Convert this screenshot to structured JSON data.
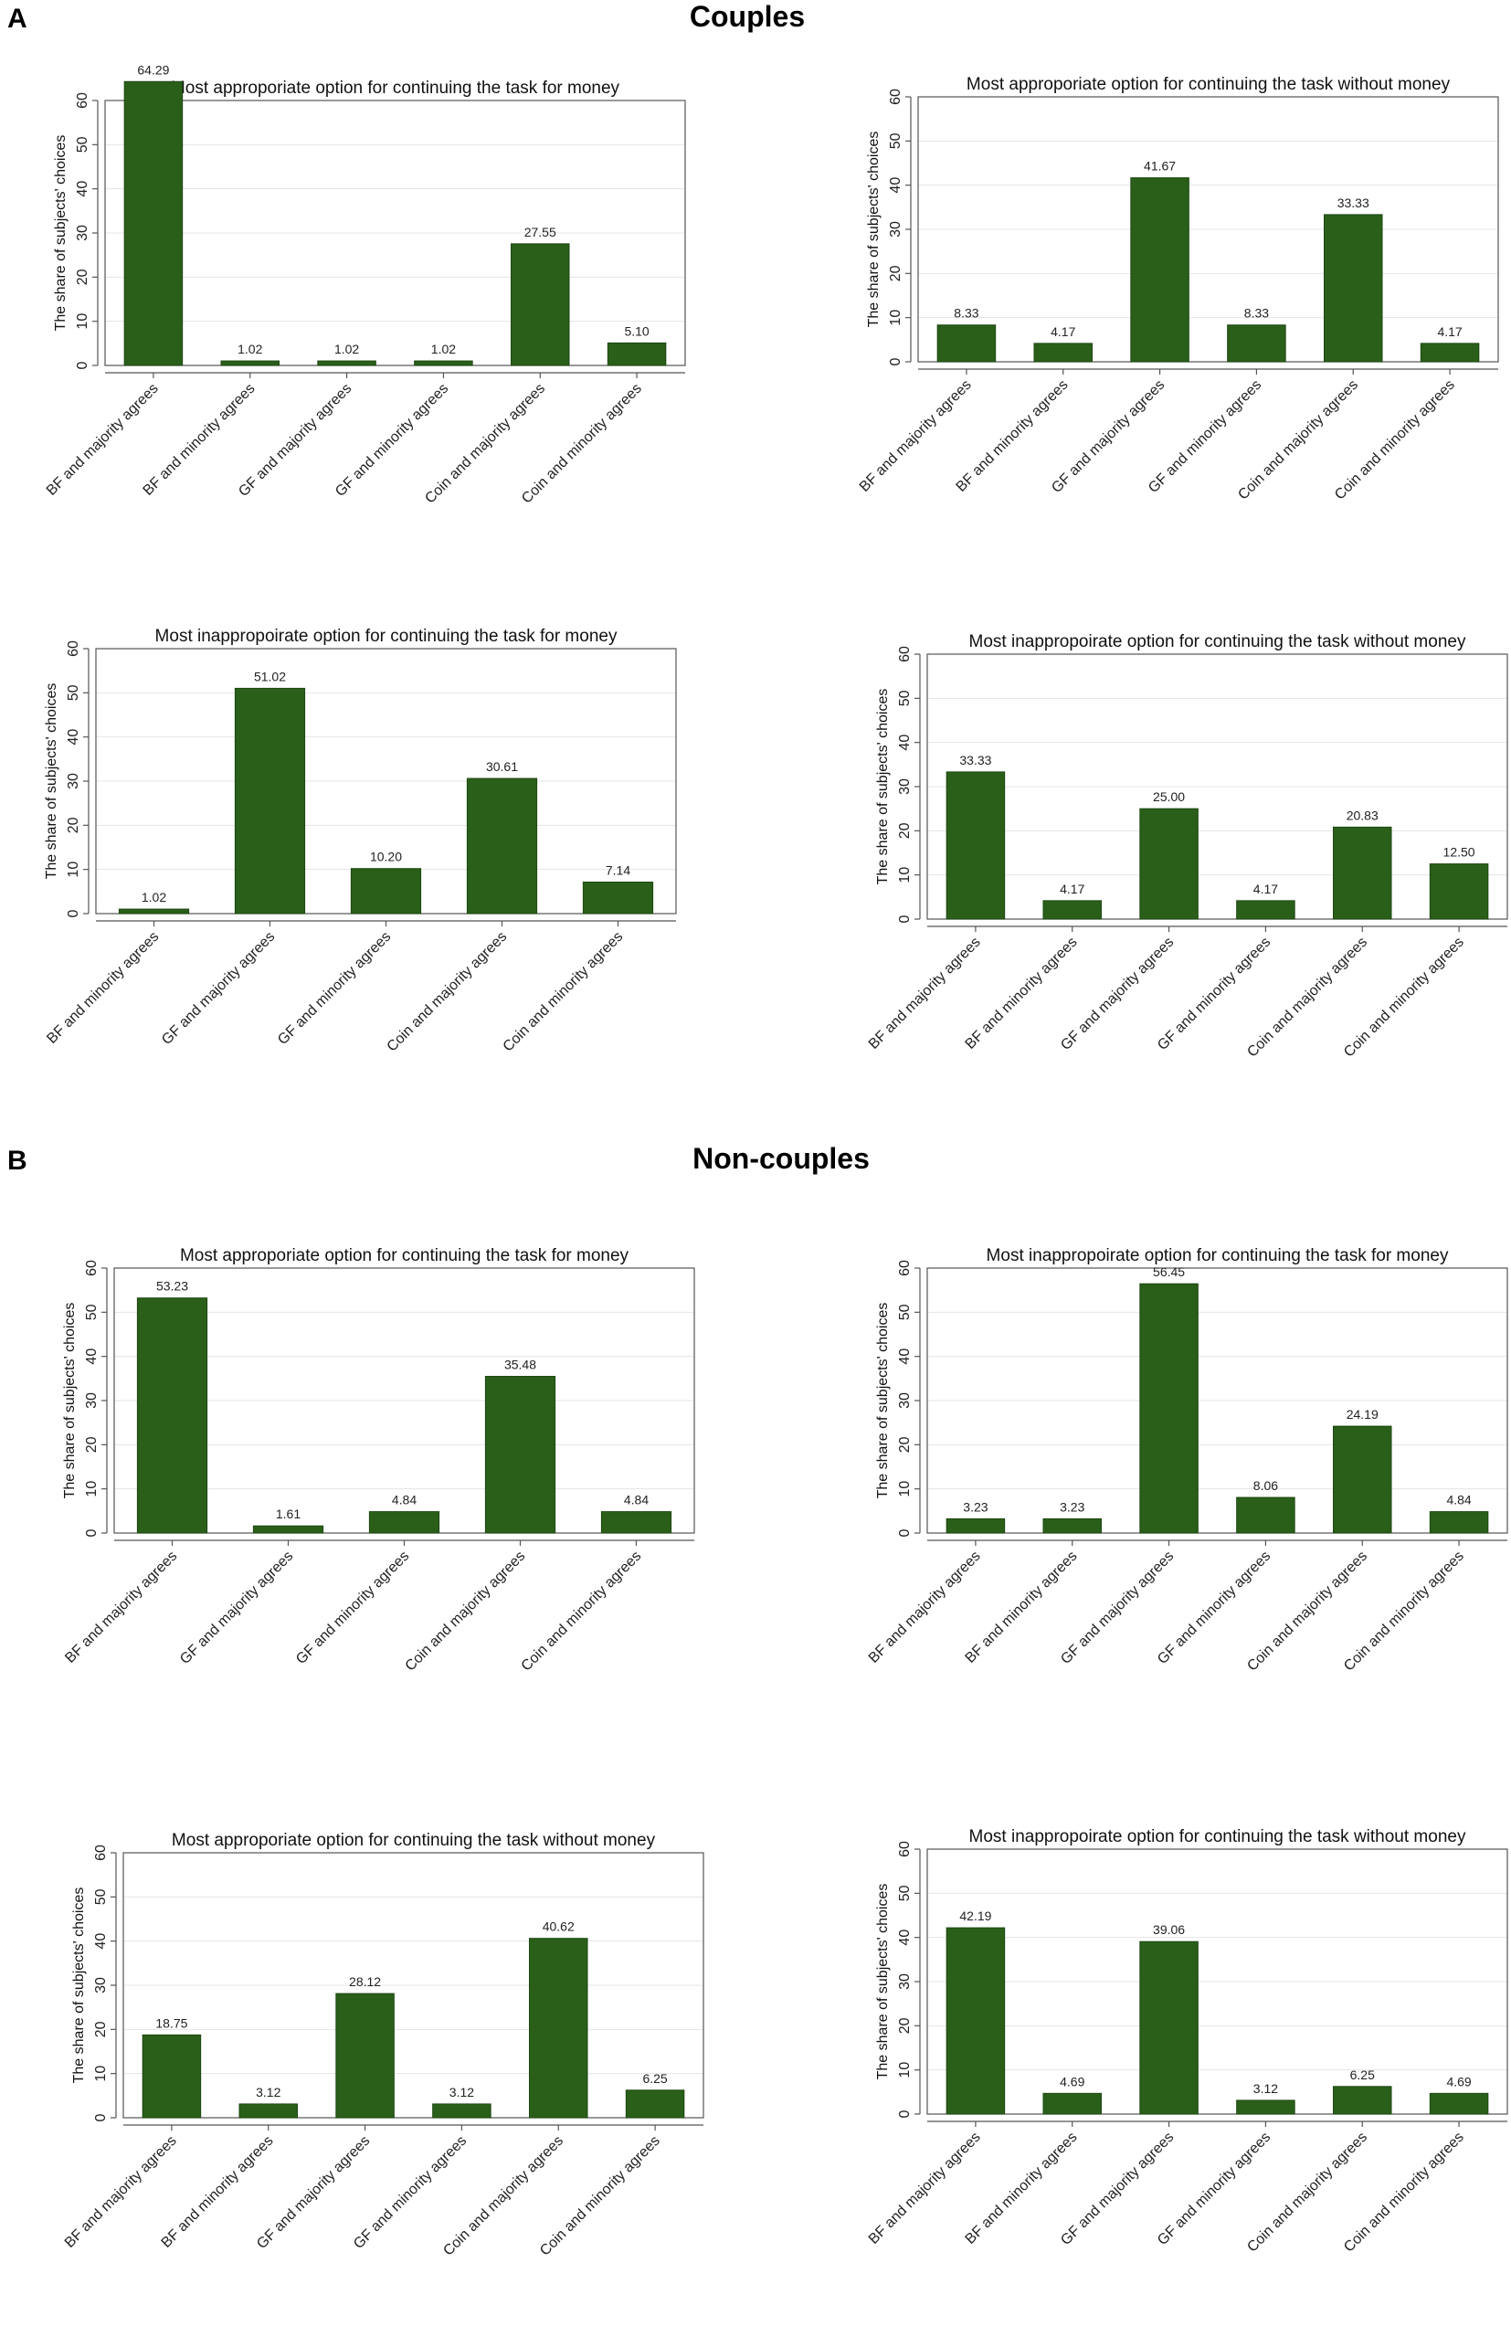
{
  "sections": {
    "A": {
      "letter": "A",
      "title": "Couples"
    },
    "B": {
      "letter": "B",
      "title": "Non-couples"
    }
  },
  "colors": {
    "bar": "#2a5f1a",
    "bar_edge": "#1d4712",
    "grid": "#e4e4e4",
    "axis": "#555555"
  },
  "chart_data": [
    {
      "type": "bar",
      "title": "Most approporiate option for continuing the task for money",
      "ylabel": "The share of subjects' choices",
      "xlabel": "",
      "ylim": [
        0,
        60
      ],
      "yticks": [
        0,
        10,
        20,
        30,
        40,
        50,
        60
      ],
      "categories": [
        "BF and majority agrees",
        "BF and minority agrees",
        "GF and majority agrees",
        "GF and minority agrees",
        "Coin and majority agrees",
        "Coin and minority agrees"
      ],
      "values": [
        64.29,
        1.02,
        1.02,
        1.02,
        27.55,
        5.1
      ],
      "value_labels": [
        "64.29",
        "1.02",
        "1.02",
        "1.02",
        "27.55",
        "5.10"
      ]
    },
    {
      "type": "bar",
      "title": "Most approporiate option for continuing the task without money",
      "ylabel": "The share of subjects' choices",
      "xlabel": "",
      "ylim": [
        0,
        60
      ],
      "yticks": [
        0,
        10,
        20,
        30,
        40,
        50,
        60
      ],
      "categories": [
        "BF and majority agrees",
        "BF and minority agrees",
        "GF and majority agrees",
        "GF and minority agrees",
        "Coin and majority agrees",
        "Coin and minority agrees"
      ],
      "values": [
        8.33,
        4.17,
        41.67,
        8.33,
        33.33,
        4.17
      ],
      "value_labels": [
        "8.33",
        "4.17",
        "41.67",
        "8.33",
        "33.33",
        "4.17"
      ]
    },
    {
      "type": "bar",
      "title": "Most inappropoirate option for continuing the task for money",
      "ylabel": "The share of subjects' choices",
      "xlabel": "",
      "ylim": [
        0,
        60
      ],
      "yticks": [
        0,
        10,
        20,
        30,
        40,
        50,
        60
      ],
      "categories": [
        "BF and minority agrees",
        "GF and majority agrees",
        "GF and minority agrees",
        "Coin and majority agrees",
        "Coin and minority agrees"
      ],
      "values": [
        1.02,
        51.02,
        10.2,
        30.61,
        7.14
      ],
      "value_labels": [
        "1.02",
        "51.02",
        "10.20",
        "30.61",
        "7.14"
      ]
    },
    {
      "type": "bar",
      "title": "Most inappropoirate option for continuing the task without money",
      "ylabel": "The share of subjects' choices",
      "xlabel": "",
      "ylim": [
        0,
        60
      ],
      "yticks": [
        0,
        10,
        20,
        30,
        40,
        50,
        60
      ],
      "categories": [
        "BF and majority agrees",
        "BF and minority agrees",
        "GF and majority agrees",
        "GF and minority agrees",
        "Coin and majority agrees",
        "Coin and minority agrees"
      ],
      "values": [
        33.33,
        4.17,
        25.0,
        4.17,
        20.83,
        12.5
      ],
      "value_labels": [
        "33.33",
        "4.17",
        "25.00",
        "4.17",
        "20.83",
        "12.50"
      ]
    },
    {
      "type": "bar",
      "title": "Most approporiate option for continuing the task for money",
      "ylabel": "The share of subjects' choices",
      "xlabel": "",
      "ylim": [
        0,
        60
      ],
      "yticks": [
        0,
        10,
        20,
        30,
        40,
        50,
        60
      ],
      "categories": [
        "BF and majority agrees",
        "GF and majority agrees",
        "GF and minority agrees",
        "Coin and majority agrees",
        "Coin and minority agrees"
      ],
      "values": [
        53.23,
        1.61,
        4.84,
        35.48,
        4.84
      ],
      "value_labels": [
        "53.23",
        "1.61",
        "4.84",
        "35.48",
        "4.84"
      ]
    },
    {
      "type": "bar",
      "title": "Most inappropoirate option for continuing the task for money",
      "ylabel": "The share of subjects' choices",
      "xlabel": "",
      "ylim": [
        0,
        60
      ],
      "yticks": [
        0,
        10,
        20,
        30,
        40,
        50,
        60
      ],
      "categories": [
        "BF and majority agrees",
        "BF and minority agrees",
        "GF and majority agrees",
        "GF and minority agrees",
        "Coin and majority agrees",
        "Coin and minority agrees"
      ],
      "values": [
        3.23,
        3.23,
        56.45,
        8.06,
        24.19,
        4.84
      ],
      "value_labels": [
        "3.23",
        "3.23",
        "56.45",
        "8.06",
        "24.19",
        "4.84"
      ]
    },
    {
      "type": "bar",
      "title": "Most approporiate option for continuing the task without money",
      "ylabel": "The share of subjects' choices",
      "xlabel": "",
      "ylim": [
        0,
        60
      ],
      "yticks": [
        0,
        10,
        20,
        30,
        40,
        50,
        60
      ],
      "categories": [
        "BF and majority agrees",
        "BF and minority agrees",
        "GF and majority agrees",
        "GF and minority agrees",
        "Coin and majority agrees",
        "Coin and minority agrees"
      ],
      "values": [
        18.75,
        3.12,
        28.12,
        3.12,
        40.62,
        6.25
      ],
      "value_labels": [
        "18.75",
        "3.12",
        "28.12",
        "3.12",
        "40.62",
        "6.25"
      ]
    },
    {
      "type": "bar",
      "title": "Most inappropoirate option for continuing the task without money",
      "ylabel": "The share of subjects' choices",
      "xlabel": "",
      "ylim": [
        0,
        60
      ],
      "yticks": [
        0,
        10,
        20,
        30,
        40,
        50,
        60
      ],
      "categories": [
        "BF and majority agrees",
        "BF and minority agrees",
        "GF and majority agrees",
        "GF and minority agrees",
        "Coin and majority agrees",
        "Coin and minority agrees"
      ],
      "values": [
        42.19,
        4.69,
        39.06,
        3.12,
        6.25,
        4.69
      ],
      "value_labels": [
        "42.19",
        "4.69",
        "39.06",
        "3.12",
        "6.25",
        "4.69"
      ]
    }
  ]
}
